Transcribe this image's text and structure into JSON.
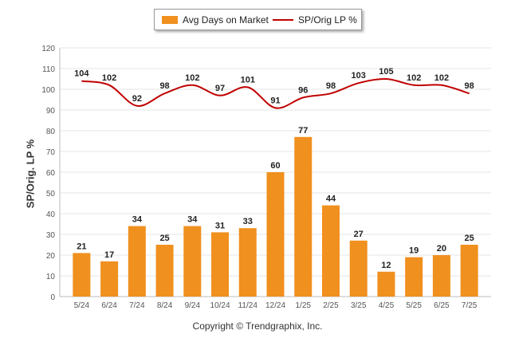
{
  "chart_data": {
    "type": "bar",
    "categories": [
      "5/24",
      "6/24",
      "7/24",
      "8/24",
      "9/24",
      "10/24",
      "11/24",
      "12/24",
      "1/25",
      "2/25",
      "3/25",
      "4/25",
      "5/25",
      "6/25",
      "7/25"
    ],
    "series": [
      {
        "name": "Avg Days on Market",
        "type": "bar",
        "color": "#f0901e",
        "values": [
          21,
          17,
          34,
          25,
          34,
          31,
          33,
          60,
          77,
          44,
          27,
          12,
          19,
          20,
          25
        ]
      },
      {
        "name": "SP/Orig LP %",
        "type": "line",
        "color": "#c00000",
        "values": [
          104,
          102,
          92,
          98,
          102,
          97,
          101,
          91,
          96,
          98,
          103,
          105,
          102,
          102,
          98
        ]
      }
    ],
    "ylabel": "SP/Orig. LP %",
    "ylim": [
      0,
      120
    ],
    "yticks": [
      0,
      10,
      20,
      30,
      40,
      50,
      60,
      70,
      80,
      90,
      100,
      110,
      120
    ],
    "grid": true,
    "legend_position": "top"
  },
  "footer": "Copyright © Trendgraphix, Inc."
}
